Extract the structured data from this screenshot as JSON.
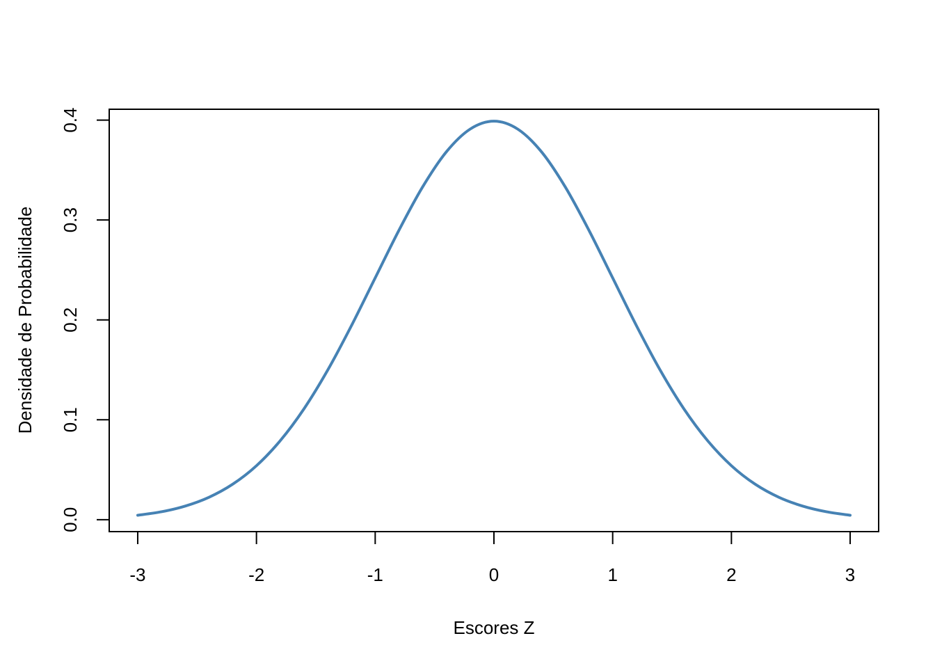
{
  "chart_data": {
    "type": "line",
    "title": "",
    "xlabel": "Escores Z",
    "ylabel": "Densidade de Probabilidade",
    "xlim": [
      -3.24,
      3.24
    ],
    "ylim": [
      -0.01197,
      0.41085
    ],
    "x_ticks": [
      -3,
      -2,
      -1,
      0,
      1,
      2,
      3
    ],
    "x_tick_labels": [
      "-3",
      "-2",
      "-1",
      "0",
      "1",
      "2",
      "3"
    ],
    "y_ticks": [
      0.0,
      0.1,
      0.2,
      0.3,
      0.4
    ],
    "y_tick_labels": [
      "0.0",
      "0.1",
      "0.2",
      "0.3",
      "0.4"
    ],
    "grid": false,
    "series": [
      {
        "color": "#4682B4",
        "x": [
          -3.0,
          -2.8,
          -2.6,
          -2.4,
          -2.2,
          -2.0,
          -1.8,
          -1.6,
          -1.4,
          -1.2,
          -1.0,
          -0.8,
          -0.6,
          -0.4,
          -0.2,
          0.0,
          0.2,
          0.4,
          0.6,
          0.8,
          1.0,
          1.2,
          1.4,
          1.6,
          1.8,
          2.0,
          2.2,
          2.4,
          2.6,
          2.8,
          3.0
        ],
        "y": [
          0.0044,
          0.0079,
          0.0136,
          0.0224,
          0.0355,
          0.054,
          0.079,
          0.1109,
          0.1497,
          0.1942,
          0.242,
          0.2897,
          0.3332,
          0.3683,
          0.391,
          0.3989,
          0.391,
          0.3683,
          0.3332,
          0.2897,
          0.242,
          0.1942,
          0.1497,
          0.1109,
          0.079,
          0.054,
          0.0355,
          0.0224,
          0.0136,
          0.0079,
          0.0044
        ]
      }
    ]
  }
}
